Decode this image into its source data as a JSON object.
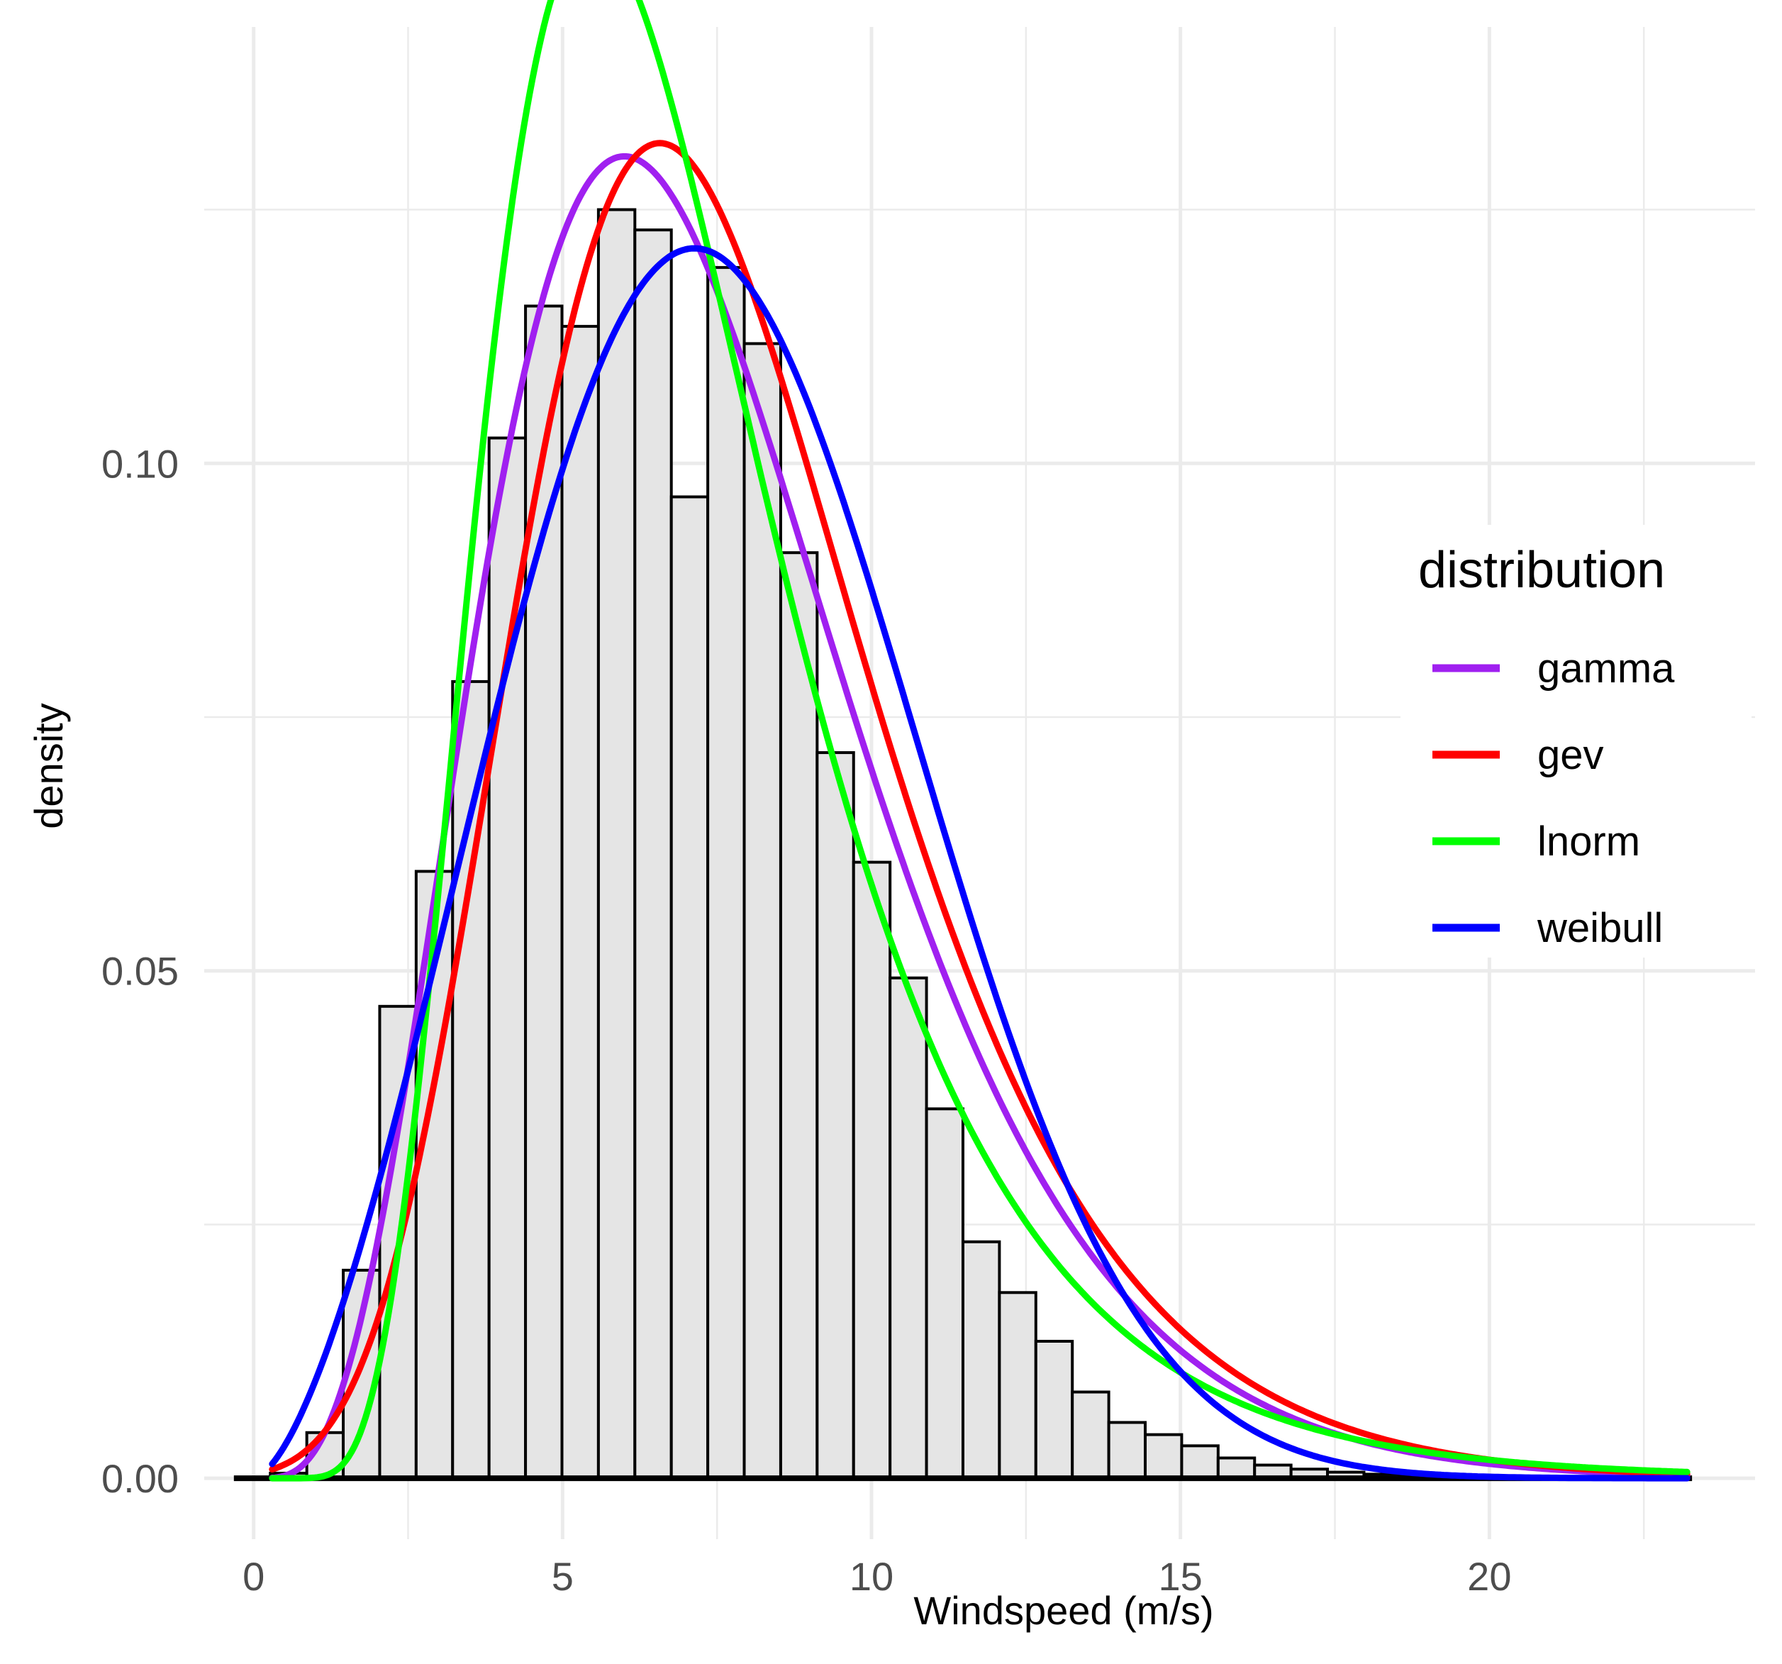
{
  "chart_data": {
    "type": "histogram-with-density-curves",
    "title": "",
    "xlabel": "Windspeed (m/s)",
    "ylabel": "density",
    "xlim": [
      -0.8,
      24.3
    ],
    "ylim": [
      -0.006,
      0.143
    ],
    "x_ticks": [
      0,
      5,
      10,
      15,
      20
    ],
    "x_tick_labels": [
      "0",
      "5",
      "10",
      "15",
      "20"
    ],
    "y_ticks": [
      0.0,
      0.05,
      0.1
    ],
    "y_tick_labels": [
      "0.00",
      "0.05",
      "0.10"
    ],
    "grid": true,
    "histogram": {
      "fill": "#e5e5e5",
      "stroke": "#000000",
      "bin_width": 0.59,
      "bin_left_edges": [
        -0.32,
        0.27,
        0.86,
        1.45,
        2.04,
        2.63,
        3.22,
        3.81,
        4.4,
        4.99,
        5.58,
        6.17,
        6.76,
        7.35,
        7.94,
        8.53,
        9.12,
        9.71,
        10.3,
        10.89,
        11.48,
        12.07,
        12.66,
        13.25,
        13.84,
        14.43,
        15.02,
        15.61,
        16.2,
        16.79,
        17.38,
        17.97,
        18.56,
        19.15,
        19.74,
        20.33,
        20.92,
        21.51,
        22.1,
        22.69
      ],
      "densities": [
        0.0,
        0.0005,
        0.0045,
        0.0205,
        0.0465,
        0.0598,
        0.0785,
        0.1025,
        0.1155,
        0.1135,
        0.125,
        0.123,
        0.0967,
        0.1193,
        0.1118,
        0.0912,
        0.0715,
        0.0607,
        0.0493,
        0.0364,
        0.0233,
        0.0183,
        0.0135,
        0.0085,
        0.0055,
        0.0043,
        0.0032,
        0.002,
        0.0013,
        0.0009,
        0.0006,
        0.0004,
        0.0003,
        0.0002,
        0.0001,
        0.0001,
        0.0,
        0.0,
        0.0,
        0.0
      ]
    },
    "series": [
      {
        "name": "gamma",
        "color": "#a020f0",
        "type": "gamma",
        "shape": 5.0,
        "rate": 0.6667,
        "x_range": [
          0.3,
          23.2
        ]
      },
      {
        "name": "gev",
        "color": "#ff0000",
        "type": "gev",
        "location": 6.43,
        "scale": 2.8,
        "shape": -0.05,
        "x_range": [
          0.3,
          23.2
        ]
      },
      {
        "name": "lnorm",
        "color": "#00ff00",
        "type": "lognormal",
        "meanlog": 1.89,
        "sdlog": 0.435,
        "x_range": [
          0.3,
          23.2
        ]
      },
      {
        "name": "weibull",
        "color": "#0000ff",
        "type": "weibull",
        "shape": 2.6,
        "scale": 8.6,
        "x_range": [
          0.3,
          23.2
        ]
      }
    ],
    "legend": {
      "title": "distribution",
      "position": "right",
      "entries": [
        "gamma",
        "gev",
        "lnorm",
        "weibull"
      ]
    }
  }
}
